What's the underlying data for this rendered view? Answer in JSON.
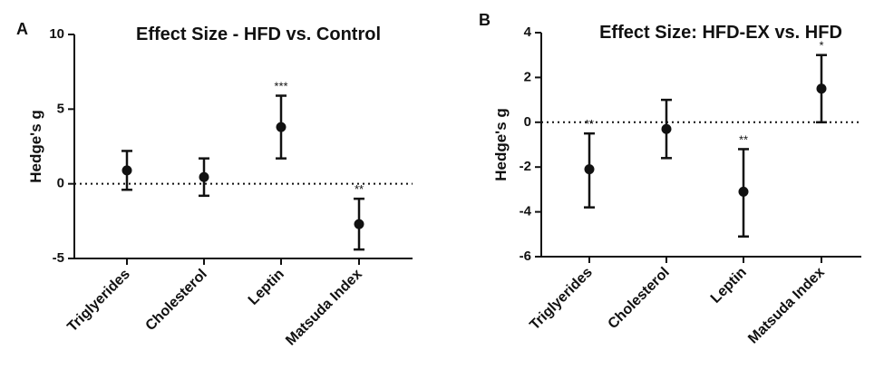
{
  "chart_data": [
    {
      "type": "errorbar",
      "panel_label": "A",
      "title": "Effect  Size - HFD vs. Control",
      "y_label": "Hedge's g",
      "categories": [
        "Triglyerides",
        "Cholesterol",
        "Leptin",
        "Matsuda Index"
      ],
      "values": [
        0.9,
        0.45,
        3.8,
        -2.7
      ],
      "lower": [
        -0.4,
        -0.8,
        1.7,
        -4.4
      ],
      "upper": [
        2.2,
        1.7,
        5.9,
        -1.0
      ],
      "annotations": [
        null,
        null,
        "***",
        "**"
      ],
      "ylim": [
        -5,
        10
      ],
      "yticks": [
        -5,
        0,
        5,
        10
      ],
      "reference_line": 0,
      "color": "#111111"
    },
    {
      "type": "errorbar",
      "panel_label": "B",
      "title": "Effect  Size: HFD-EX vs. HFD",
      "y_label": "Hedge's g",
      "categories": [
        "Triglyerides",
        "Cholesterol",
        "Leptin",
        "Matsuda Index"
      ],
      "values": [
        -2.1,
        -0.3,
        -3.1,
        1.5
      ],
      "lower": [
        -3.8,
        -1.6,
        -5.1,
        0.0
      ],
      "upper": [
        -0.5,
        1.0,
        -1.2,
        3.0
      ],
      "annotations": [
        "**",
        null,
        "**",
        "*"
      ],
      "ylim": [
        -6,
        4
      ],
      "yticks": [
        -6,
        -4,
        -2,
        0,
        2,
        4
      ],
      "reference_line": 0,
      "color": "#111111"
    }
  ]
}
